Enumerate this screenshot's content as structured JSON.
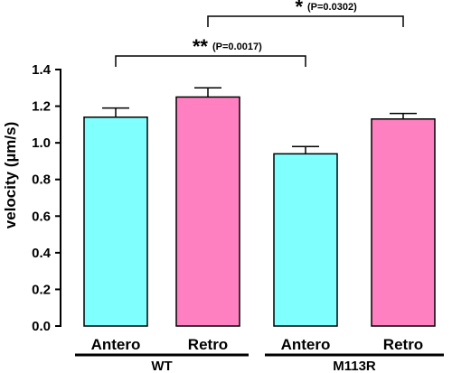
{
  "chart_data": {
    "type": "bar",
    "categories": [
      "Antero",
      "Retro",
      "Antero",
      "Retro"
    ],
    "groups": [
      {
        "label": "WT",
        "categories": [
          0,
          1
        ]
      },
      {
        "label": "M113R",
        "categories": [
          2,
          3
        ]
      }
    ],
    "series": [
      {
        "values": [
          1.14,
          1.25,
          0.94,
          1.13
        ],
        "errors": [
          0.05,
          0.05,
          0.04,
          0.03
        ],
        "colors": [
          "#80FFFF",
          "#FF80C0",
          "#80FFFF",
          "#FF80C0"
        ]
      }
    ],
    "ylabel": "velocity (µm/s)",
    "ylim": [
      0,
      1.4
    ],
    "yticks": [
      "0.0",
      "0.2",
      "0.4",
      "0.6",
      "0.8",
      "1.0",
      "1.2",
      "1.4"
    ],
    "ytick_values": [
      0,
      0.2,
      0.4,
      0.6,
      0.8,
      1.0,
      1.2,
      1.4
    ],
    "grid": false,
    "annotations": [
      {
        "from": 0,
        "to": 2,
        "stars": "**",
        "p_text": "(P=0.0017)"
      },
      {
        "from": 1,
        "to": 3,
        "stars": "*",
        "p_text": "(P=0.0302)"
      }
    ]
  }
}
